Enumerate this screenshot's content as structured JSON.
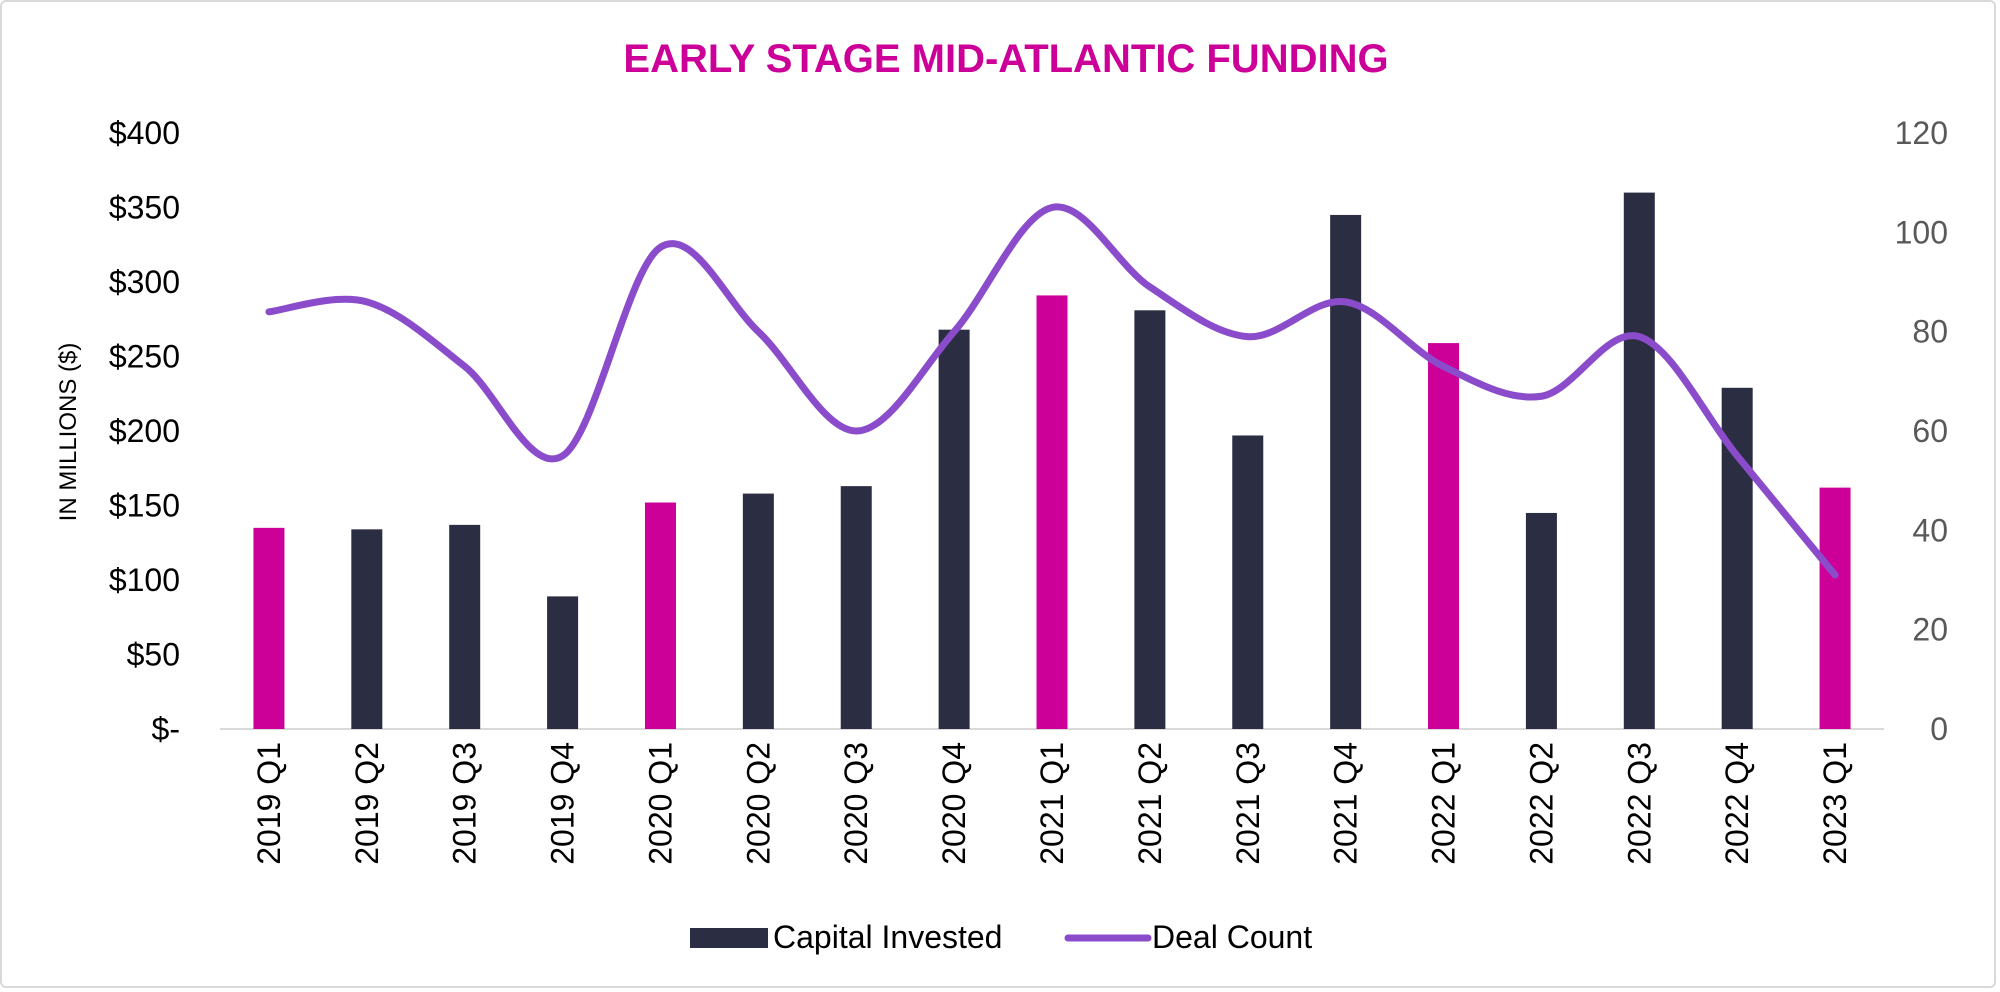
{
  "chart_data": {
    "type": "bar",
    "title": "EARLY STAGE MID-ATLANTIC FUNDING",
    "ylabel": "IN MILLIONS ($)",
    "y2label": "",
    "xlabel": "",
    "categories": [
      "2019 Q1",
      "2019 Q2",
      "2019 Q3",
      "2019 Q4",
      "2020 Q1",
      "2020 Q2",
      "2020 Q3",
      "2020 Q4",
      "2021 Q1",
      "2021 Q2",
      "2021 Q3",
      "2021 Q4",
      "2022 Q1",
      "2022 Q2",
      "2022 Q3",
      "2022 Q4",
      "2023 Q1"
    ],
    "ylim": [
      0,
      400
    ],
    "y_ticks": [
      0,
      50,
      100,
      150,
      200,
      250,
      300,
      350,
      400
    ],
    "y_tick_labels": [
      "$-",
      "$50",
      "$100",
      "$150",
      "$200",
      "$250",
      "$300",
      "$350",
      "$400"
    ],
    "y2lim": [
      0,
      120
    ],
    "y2_ticks": [
      0,
      20,
      40,
      60,
      80,
      100,
      120
    ],
    "y2_tick_labels": [
      "0",
      "20",
      "40",
      "60",
      "80",
      "100",
      "120"
    ],
    "grid": false,
    "legend_position": "bottom-center",
    "series": [
      {
        "name": "Capital Invested",
        "type": "bar",
        "axis": "left",
        "color": "#2b2d42",
        "highlight_color": "#cc0099",
        "highlight_categories": [
          "2019 Q1",
          "2020 Q1",
          "2021 Q1",
          "2022 Q1",
          "2023 Q1"
        ],
        "values": [
          135,
          134,
          137,
          89,
          152,
          158,
          163,
          268,
          291,
          281,
          197,
          345,
          259,
          145,
          360,
          229,
          162
        ]
      },
      {
        "name": "Deal Count",
        "type": "line",
        "axis": "right",
        "color": "#8b4ccc",
        "smooth": true,
        "values": [
          84,
          86,
          73,
          55,
          97,
          80,
          60,
          80,
          105,
          89,
          79,
          86,
          73,
          67,
          79,
          55,
          31
        ]
      }
    ],
    "colors": {
      "title": "#cc0099",
      "axis_text": "#000000",
      "right_axis_text": "#595959",
      "baseline": "#d9d9d9"
    }
  }
}
